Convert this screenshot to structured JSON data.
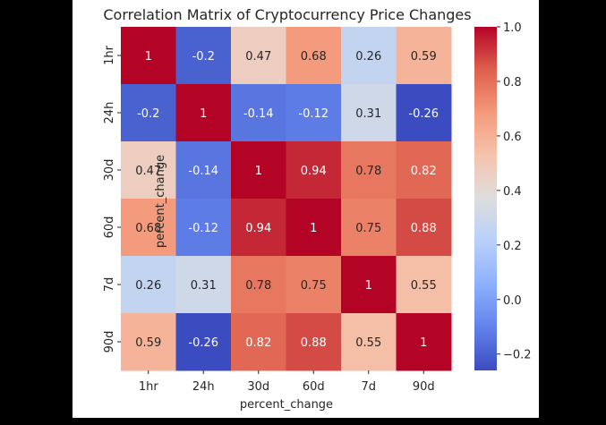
{
  "chart_data": {
    "type": "heatmap",
    "title": "Correlation Matrix of Cryptocurrency Price Changes",
    "xlabel": "percent_change",
    "ylabel": "percent_change",
    "x_categories": [
      "1hr",
      "24h",
      "30d",
      "60d",
      "7d",
      "90d"
    ],
    "y_categories": [
      "1hr",
      "24h",
      "30d",
      "60d",
      "7d",
      "90d"
    ],
    "values": [
      [
        1,
        -0.2,
        0.47,
        0.68,
        0.26,
        0.59
      ],
      [
        -0.2,
        1,
        -0.14,
        -0.12,
        0.31,
        -0.26
      ],
      [
        0.47,
        -0.14,
        1,
        0.94,
        0.78,
        0.82
      ],
      [
        0.68,
        -0.12,
        0.94,
        1,
        0.75,
        0.88
      ],
      [
        0.26,
        0.31,
        0.78,
        0.75,
        1,
        0.55
      ],
      [
        0.59,
        -0.26,
        0.82,
        0.88,
        0.55,
        1
      ]
    ],
    "colorbar": {
      "colormap": "coolwarm",
      "vmin": -0.26,
      "vmax": 1.0,
      "ticks": [
        -0.2,
        0.0,
        0.2,
        0.4,
        0.6,
        0.8,
        1.0
      ],
      "tick_labels": [
        "−0.2",
        "0.0",
        "0.2",
        "0.4",
        "0.6",
        "0.8",
        "1.0"
      ]
    },
    "annotated": true,
    "grid": false
  }
}
